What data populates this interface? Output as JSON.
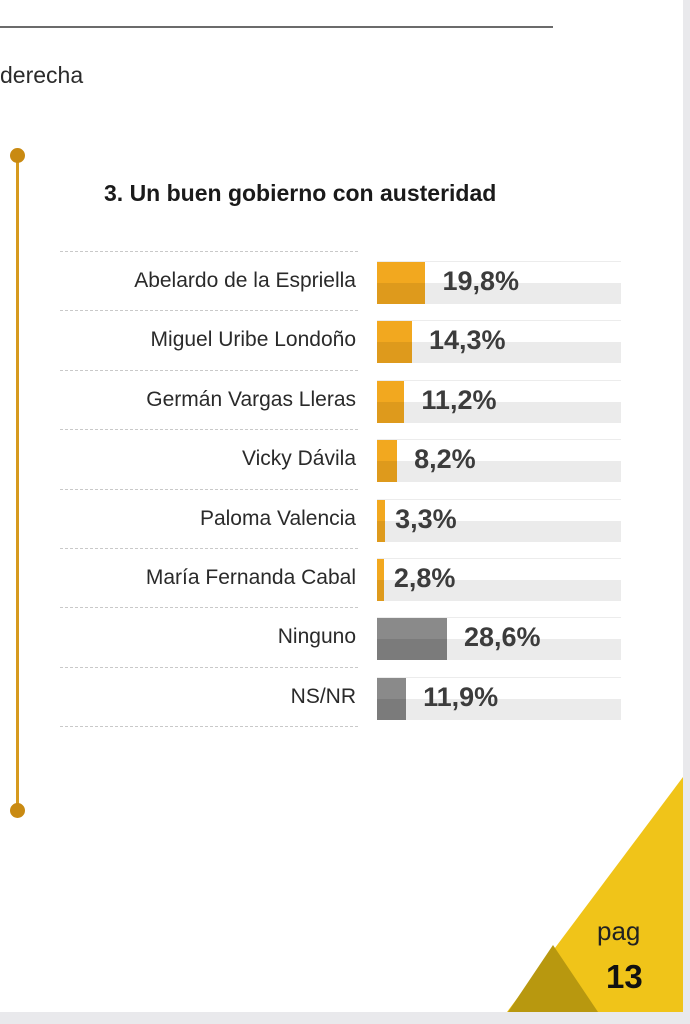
{
  "header": {
    "previous_text": "derecha"
  },
  "chart_data": {
    "type": "bar",
    "orientation": "horizontal",
    "title": "3. Un buen gobierno con austeridad",
    "categories": [
      "Abelardo de la Espriella",
      "Miguel Uribe Londoño",
      "Germán Vargas Lleras",
      "Vicky Dávila",
      "Paloma Valencia",
      "María Fernanda Cabal",
      "Ninguno",
      "NS/NR"
    ],
    "values": [
      19.8,
      14.3,
      11.2,
      8.2,
      3.3,
      2.8,
      28.6,
      11.9
    ],
    "labels": [
      "19,8%",
      "14,3%",
      "11,2%",
      "8,2%",
      "3,3%",
      "2,8%",
      "28,6%",
      "11,9%"
    ],
    "colors": [
      "#f2a81f",
      "#f2a81f",
      "#f2a81f",
      "#f2a81f",
      "#f2a81f",
      "#f2a81f",
      "#8a8a8a",
      "#8a8a8a"
    ],
    "xlim": [
      0,
      100
    ],
    "xlabel": "",
    "ylabel": ""
  },
  "footer": {
    "page_label": "pag",
    "page_number": "13"
  }
}
